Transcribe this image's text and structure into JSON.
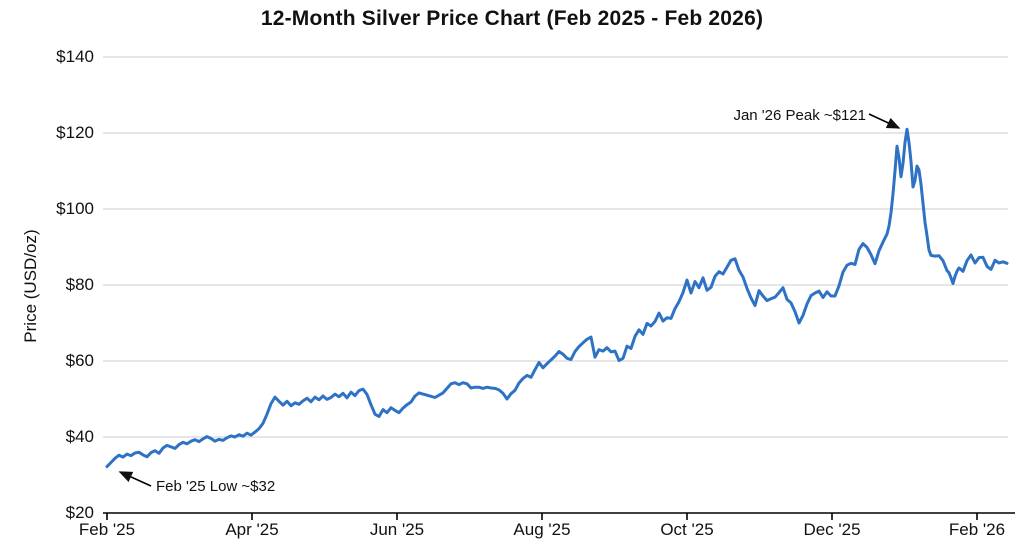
{
  "chart_data": {
    "type": "line",
    "title": "12-Month Silver Price Chart (Feb 2025 - Feb 2026)",
    "xlabel": "",
    "ylabel": "Price (USD/oz)",
    "ylim": [
      20,
      140
    ],
    "xlim_months": [
      0,
      12.41
    ],
    "grid": "horizontal",
    "legend_position": "none",
    "x_unit": "months since Feb 2025",
    "x_ticks": {
      "months": [
        0,
        2,
        4,
        6,
        8,
        10,
        12
      ],
      "labels": [
        "Feb '25",
        "Apr '25",
        "Jun '25",
        "Aug '25",
        "Oct '25",
        "Dec '25",
        "Feb '26"
      ]
    },
    "y_ticks": {
      "values": [
        140,
        120,
        100,
        80,
        60,
        40,
        20
      ],
      "labels": [
        "$140",
        "$120",
        "$100",
        "$80",
        "$60",
        "$40",
        "$20"
      ]
    },
    "colors": {
      "line": "#2e72c6",
      "grid": "#cccccc",
      "axis": "#000000",
      "text": "#111111",
      "background": "#ffffff"
    },
    "annotations": [
      {
        "id": "peak",
        "text": "Jan '26 Peak ~$121",
        "point_month": 11.034,
        "point_price": 121
      },
      {
        "id": "low",
        "text": "Feb '25 Low ~$32",
        "point_month": 0,
        "point_price": 32.2
      }
    ],
    "series": [
      {
        "name": "Silver price (USD/oz)",
        "points": [
          [
            0,
            32.2
          ],
          [
            0.055,
            33.3
          ],
          [
            0.11,
            34.4
          ],
          [
            0.166,
            35.2
          ],
          [
            0.221,
            34.7
          ],
          [
            0.276,
            35.5
          ],
          [
            0.331,
            35.1
          ],
          [
            0.386,
            35.8
          ],
          [
            0.441,
            36
          ],
          [
            0.497,
            35.3
          ],
          [
            0.552,
            34.8
          ],
          [
            0.607,
            35.9
          ],
          [
            0.662,
            36.4
          ],
          [
            0.717,
            35.7
          ],
          [
            0.772,
            37.1
          ],
          [
            0.828,
            37.8
          ],
          [
            0.883,
            37.4
          ],
          [
            0.938,
            37
          ],
          [
            0.993,
            38
          ],
          [
            1.048,
            38.6
          ],
          [
            1.103,
            38.2
          ],
          [
            1.159,
            38.9
          ],
          [
            1.214,
            39.3
          ],
          [
            1.269,
            38.8
          ],
          [
            1.324,
            39.5
          ],
          [
            1.379,
            40.1
          ],
          [
            1.434,
            39.6
          ],
          [
            1.49,
            38.9
          ],
          [
            1.545,
            39.4
          ],
          [
            1.6,
            39.1
          ],
          [
            1.655,
            39.8
          ],
          [
            1.71,
            40.3
          ],
          [
            1.766,
            40
          ],
          [
            1.821,
            40.6
          ],
          [
            1.876,
            40.2
          ],
          [
            1.931,
            41
          ],
          [
            1.986,
            40.5
          ],
          [
            2.041,
            41.3
          ],
          [
            2.097,
            42.2
          ],
          [
            2.152,
            43.6
          ],
          [
            2.207,
            46
          ],
          [
            2.262,
            48.8
          ],
          [
            2.317,
            50.5
          ],
          [
            2.372,
            49.4
          ],
          [
            2.428,
            48.4
          ],
          [
            2.483,
            49.4
          ],
          [
            2.538,
            48.2
          ],
          [
            2.593,
            49
          ],
          [
            2.648,
            48.6
          ],
          [
            2.703,
            49.5
          ],
          [
            2.759,
            50.2
          ],
          [
            2.814,
            49.3
          ],
          [
            2.869,
            50.5
          ],
          [
            2.924,
            49.8
          ],
          [
            2.979,
            50.8
          ],
          [
            3.034,
            49.9
          ],
          [
            3.09,
            50.4
          ],
          [
            3.145,
            51.3
          ],
          [
            3.2,
            50.6
          ],
          [
            3.255,
            51.5
          ],
          [
            3.31,
            50.3
          ],
          [
            3.366,
            51.8
          ],
          [
            3.421,
            50.9
          ],
          [
            3.476,
            52.2
          ],
          [
            3.531,
            52.6
          ],
          [
            3.586,
            51.2
          ],
          [
            3.641,
            48.5
          ],
          [
            3.697,
            46
          ],
          [
            3.752,
            45.4
          ],
          [
            3.807,
            47.2
          ],
          [
            3.862,
            46.4
          ],
          [
            3.917,
            47.7
          ],
          [
            3.972,
            47
          ],
          [
            4.028,
            46.4
          ],
          [
            4.083,
            47.6
          ],
          [
            4.138,
            48.5
          ],
          [
            4.193,
            49.2
          ],
          [
            4.248,
            50.8
          ],
          [
            4.303,
            51.6
          ],
          [
            4.359,
            51.3
          ],
          [
            4.414,
            51
          ],
          [
            4.469,
            50.7
          ],
          [
            4.524,
            50.4
          ],
          [
            4.579,
            51
          ],
          [
            4.634,
            51.6
          ],
          [
            4.69,
            52.8
          ],
          [
            4.745,
            54
          ],
          [
            4.8,
            54.3
          ],
          [
            4.855,
            53.8
          ],
          [
            4.91,
            54.3
          ],
          [
            4.966,
            54
          ],
          [
            5.021,
            52.9
          ],
          [
            5.076,
            53.1
          ],
          [
            5.131,
            53.1
          ],
          [
            5.186,
            52.8
          ],
          [
            5.241,
            53.1
          ],
          [
            5.297,
            52.9
          ],
          [
            5.352,
            52.8
          ],
          [
            5.407,
            52.4
          ],
          [
            5.462,
            51.5
          ],
          [
            5.517,
            50
          ],
          [
            5.572,
            51.4
          ],
          [
            5.628,
            52.3
          ],
          [
            5.683,
            54.2
          ],
          [
            5.738,
            55.4
          ],
          [
            5.793,
            56.2
          ],
          [
            5.848,
            55.7
          ],
          [
            5.903,
            57.7
          ],
          [
            5.959,
            59.6
          ],
          [
            6.014,
            58.2
          ],
          [
            6.069,
            59.3
          ],
          [
            6.124,
            60.3
          ],
          [
            6.179,
            61.3
          ],
          [
            6.234,
            62.5
          ],
          [
            6.29,
            61.8
          ],
          [
            6.345,
            60.7
          ],
          [
            6.4,
            60.4
          ],
          [
            6.455,
            62.5
          ],
          [
            6.51,
            63.8
          ],
          [
            6.566,
            64.8
          ],
          [
            6.621,
            65.7
          ],
          [
            6.676,
            66.3
          ],
          [
            6.731,
            61
          ],
          [
            6.786,
            63
          ],
          [
            6.841,
            62.6
          ],
          [
            6.897,
            63.5
          ],
          [
            6.952,
            62.4
          ],
          [
            7.007,
            62.6
          ],
          [
            7.062,
            60.1
          ],
          [
            7.117,
            60.7
          ],
          [
            7.172,
            63.9
          ],
          [
            7.228,
            63.3
          ],
          [
            7.283,
            66.5
          ],
          [
            7.338,
            68.2
          ],
          [
            7.393,
            67
          ],
          [
            7.448,
            69.9
          ],
          [
            7.503,
            69.2
          ],
          [
            7.559,
            70.4
          ],
          [
            7.614,
            72.6
          ],
          [
            7.669,
            70.5
          ],
          [
            7.724,
            71.4
          ],
          [
            7.779,
            71.2
          ],
          [
            7.834,
            73.8
          ],
          [
            7.89,
            75.6
          ],
          [
            7.945,
            78
          ],
          [
            8,
            81.3
          ],
          [
            8.055,
            77.9
          ],
          [
            8.11,
            80.9
          ],
          [
            8.166,
            79.3
          ],
          [
            8.221,
            81.9
          ],
          [
            8.276,
            78.6
          ],
          [
            8.331,
            79.4
          ],
          [
            8.386,
            82.3
          ],
          [
            8.441,
            83.5
          ],
          [
            8.497,
            82.9
          ],
          [
            8.552,
            84.7
          ],
          [
            8.607,
            86.5
          ],
          [
            8.662,
            86.9
          ],
          [
            8.717,
            83.9
          ],
          [
            8.772,
            82.1
          ],
          [
            8.828,
            79.1
          ],
          [
            8.883,
            76.6
          ],
          [
            8.938,
            74.6
          ],
          [
            8.993,
            78.5
          ],
          [
            9.048,
            77.1
          ],
          [
            9.103,
            75.9
          ],
          [
            9.159,
            76.4
          ],
          [
            9.214,
            76.8
          ],
          [
            9.269,
            78
          ],
          [
            9.324,
            79.3
          ],
          [
            9.379,
            76.2
          ],
          [
            9.434,
            75.3
          ],
          [
            9.49,
            73
          ],
          [
            9.545,
            70
          ],
          [
            9.6,
            72
          ],
          [
            9.655,
            75
          ],
          [
            9.71,
            77.2
          ],
          [
            9.766,
            77.9
          ],
          [
            9.821,
            78.4
          ],
          [
            9.876,
            76.7
          ],
          [
            9.931,
            78.2
          ],
          [
            9.986,
            77.1
          ],
          [
            10.041,
            77.1
          ],
          [
            10.097,
            79.8
          ],
          [
            10.152,
            83.4
          ],
          [
            10.207,
            85.2
          ],
          [
            10.262,
            85.7
          ],
          [
            10.317,
            85.4
          ],
          [
            10.372,
            89.4
          ],
          [
            10.428,
            90.9
          ],
          [
            10.483,
            89.9
          ],
          [
            10.538,
            88
          ],
          [
            10.593,
            85.6
          ],
          [
            10.648,
            89
          ],
          [
            10.703,
            91.3
          ],
          [
            10.759,
            93.4
          ],
          [
            10.786,
            95.5
          ],
          [
            10.814,
            99
          ],
          [
            10.841,
            104
          ],
          [
            10.869,
            110
          ],
          [
            10.897,
            116.5
          ],
          [
            10.924,
            113.5
          ],
          [
            10.952,
            108.5
          ],
          [
            10.979,
            112
          ],
          [
            11.007,
            117.5
          ],
          [
            11.034,
            121
          ],
          [
            11.062,
            117.5
          ],
          [
            11.09,
            112.5
          ],
          [
            11.117,
            105.8
          ],
          [
            11.145,
            107.5
          ],
          [
            11.172,
            111.3
          ],
          [
            11.2,
            110.3
          ],
          [
            11.228,
            106.5
          ],
          [
            11.255,
            101.5
          ],
          [
            11.283,
            96.5
          ],
          [
            11.31,
            93
          ],
          [
            11.338,
            89.2
          ],
          [
            11.366,
            87.8
          ],
          [
            11.421,
            87.6
          ],
          [
            11.476,
            87.7
          ],
          [
            11.531,
            86.4
          ],
          [
            11.586,
            83.8
          ],
          [
            11.614,
            83.2
          ],
          [
            11.641,
            81.9
          ],
          [
            11.669,
            80.4
          ],
          [
            11.697,
            82.3
          ],
          [
            11.724,
            83.6
          ],
          [
            11.752,
            84.5
          ],
          [
            11.807,
            83.6
          ],
          [
            11.862,
            86.4
          ],
          [
            11.917,
            87.9
          ],
          [
            11.972,
            85.8
          ],
          [
            12.028,
            87.2
          ],
          [
            12.083,
            87.3
          ],
          [
            12.138,
            84.9
          ],
          [
            12.193,
            84.1
          ],
          [
            12.248,
            86.5
          ],
          [
            12.303,
            85.8
          ],
          [
            12.359,
            86.1
          ],
          [
            12.414,
            85.7
          ]
        ]
      }
    ]
  }
}
